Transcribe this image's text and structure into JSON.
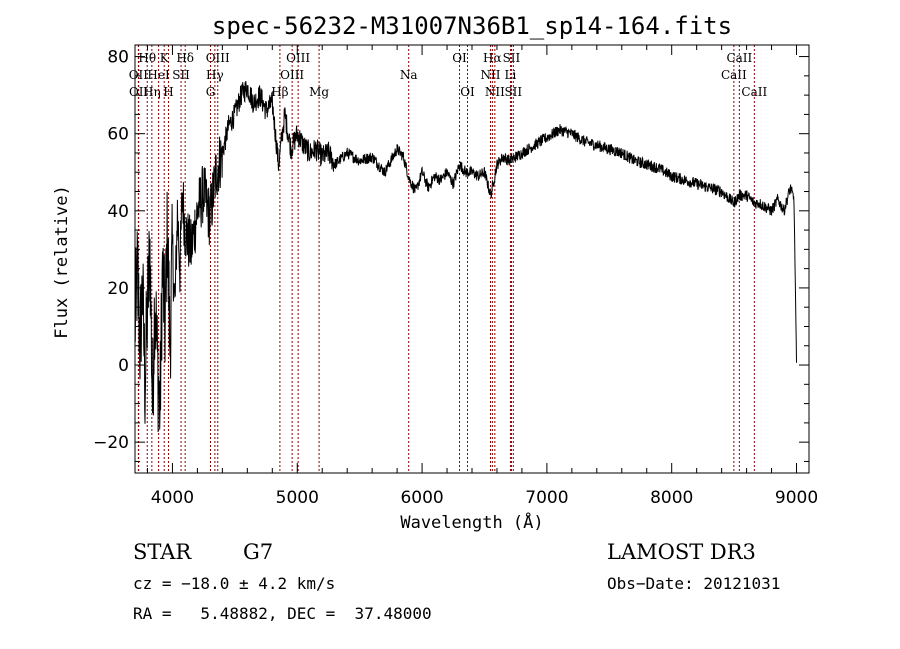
{
  "chart_data": {
    "type": "line",
    "title": "spec-56232-M31007N36B1_sp14-164.fits",
    "xlabel": "Wavelength (Å)",
    "ylabel": "Flux (relative)",
    "xlim": [
      3700,
      9100
    ],
    "ylim": [
      -28,
      83
    ],
    "xticks": [
      4000,
      5000,
      6000,
      7000,
      8000,
      9000
    ],
    "yticks": [
      -20,
      0,
      20,
      40,
      60,
      80
    ],
    "series": [
      {
        "name": "spectrum",
        "x": [
          3700,
          3720,
          3740,
          3760,
          3780,
          3800,
          3820,
          3840,
          3860,
          3880,
          3900,
          3920,
          3940,
          3960,
          3980,
          4000,
          4020,
          4040,
          4060,
          4080,
          4100,
          4150,
          4200,
          4250,
          4300,
          4350,
          4400,
          4450,
          4500,
          4550,
          4600,
          4650,
          4700,
          4750,
          4800,
          4850,
          4900,
          4950,
          5000,
          5050,
          5100,
          5150,
          5200,
          5250,
          5300,
          5400,
          5500,
          5600,
          5700,
          5800,
          5850,
          5900,
          5950,
          6000,
          6050,
          6100,
          6150,
          6200,
          6250,
          6300,
          6350,
          6400,
          6450,
          6500,
          6550,
          6563,
          6600,
          6650,
          6700,
          6800,
          6900,
          7000,
          7100,
          7200,
          7300,
          7400,
          7500,
          7600,
          7700,
          7800,
          7900,
          8000,
          8100,
          8200,
          8300,
          8400,
          8498,
          8542,
          8600,
          8662,
          8700,
          8800,
          8850,
          8900,
          8950,
          8980,
          9000
        ],
        "y": [
          10,
          25,
          5,
          20,
          -5,
          15,
          30,
          -10,
          20,
          0,
          -12,
          25,
          10,
          35,
          5,
          30,
          15,
          40,
          25,
          45,
          35,
          30,
          40,
          45,
          38,
          50,
          55,
          62,
          65,
          70,
          72,
          68,
          70,
          66,
          68,
          52,
          65,
          56,
          60,
          57,
          55,
          56,
          54,
          55,
          52,
          55,
          53,
          54,
          50,
          56,
          54,
          48,
          45,
          50,
          46,
          49,
          48,
          50,
          47,
          52,
          50,
          50,
          49,
          50,
          44,
          46,
          52,
          54,
          53,
          55,
          57,
          59,
          61,
          60,
          58,
          57,
          56,
          55,
          53,
          52,
          51,
          49,
          48,
          47,
          46,
          45,
          42,
          44,
          44,
          42,
          42,
          40,
          43,
          40,
          46,
          43,
          0
        ]
      }
    ],
    "lines": [
      {
        "name": "Hθ",
        "x": 3798,
        "row": 0
      },
      {
        "name": "OII",
        "x": 3727,
        "row": 1
      },
      {
        "name": "OII",
        "x": 3729,
        "row": 2
      },
      {
        "name": "Hη",
        "x": 3835,
        "row": 2
      },
      {
        "name": "HeI",
        "x": 3889,
        "row": 1
      },
      {
        "name": "K",
        "x": 3934,
        "row": 0
      },
      {
        "name": "SII",
        "x": 4069,
        "row": 1
      },
      {
        "name": "H",
        "x": 3968,
        "row": 2
      },
      {
        "name": "Hδ",
        "x": 4102,
        "row": 0
      },
      {
        "name": "OIII",
        "x": 4363,
        "row": 0
      },
      {
        "name": "Hγ",
        "x": 4340,
        "row": 1
      },
      {
        "name": "G",
        "x": 4305,
        "row": 2
      },
      {
        "name": "Hβ",
        "x": 4861,
        "row": 2
      },
      {
        "name": "OIII",
        "x": 4959,
        "row": 1
      },
      {
        "name": "OIII",
        "x": 5007,
        "row": 0
      },
      {
        "name": "Mg",
        "x": 5175,
        "row": 2
      },
      {
        "name": "Na",
        "x": 5893,
        "row": 1
      },
      {
        "name": "OI",
        "x": 6300,
        "row": 0
      },
      {
        "name": "OI",
        "x": 6364,
        "row": 2
      },
      {
        "name": "NII",
        "x": 6548,
        "row": 1
      },
      {
        "name": "Hα",
        "x": 6563,
        "row": 0
      },
      {
        "name": "NII",
        "x": 6583,
        "row": 2
      },
      {
        "name": "Li",
        "x": 6708,
        "row": 1
      },
      {
        "name": "SII",
        "x": 6716,
        "row": 0
      },
      {
        "name": "SII",
        "x": 6731,
        "row": 2
      },
      {
        "name": "CaII",
        "x": 8498,
        "row": 1
      },
      {
        "name": "CaII",
        "x": 8542,
        "row": 0
      },
      {
        "name": "CaII",
        "x": 8662,
        "row": 2
      }
    ],
    "line_color": "#8b0000"
  },
  "info": {
    "class_label": "STAR",
    "subclass_label": "G7",
    "survey": "LAMOST DR3",
    "cz": "cz = −18.0 ± 4.2 km/s",
    "obs_date": "Obs−Date: 20121031",
    "coords": "RA =   5.48882, DEC =  37.48000"
  }
}
